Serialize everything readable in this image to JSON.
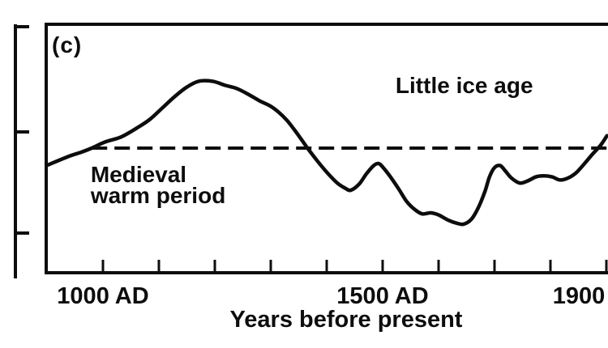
{
  "figure": {
    "background": "#ffffff",
    "ink_color": "#0d0d0d"
  },
  "chart_data": {
    "type": "line",
    "title": "",
    "panel_label": "(c)",
    "xlabel": "Years before present",
    "ylabel": "",
    "xlim": [
      899,
      1903
    ],
    "ylim": [
      -1.21,
      1.2
    ],
    "grid": false,
    "x_ticks": {
      "start_year": 1000,
      "end_year": 1900,
      "step": 100
    },
    "x_tick_labels": [
      {
        "year": 1000,
        "label": "1000 AD"
      },
      {
        "year": 1500,
        "label": "1500 AD"
      },
      {
        "year": 1900,
        "label": "1900"
      }
    ],
    "y_axis": {
      "labels_visible": false,
      "tick_count": 3
    },
    "baseline": {
      "value": 0,
      "style": "dashed",
      "start_year": 980,
      "end_year": 1903
    },
    "annotations": [
      {
        "id": "little-ice-age",
        "lines": [
          "Little ice age"
        ],
        "year": 1646,
        "value": 0.61,
        "align": "center"
      },
      {
        "id": "medieval-warm-period",
        "lines": [
          "Medieval",
          "warm period"
        ],
        "year": 978,
        "value": -0.17,
        "align": "left"
      }
    ],
    "series": [
      {
        "name": "relative-temperature",
        "x": [
          899,
          939,
          961,
          980,
          1004,
          1033,
          1062,
          1084,
          1106,
          1128,
          1149,
          1171,
          1196,
          1219,
          1239,
          1261,
          1280,
          1299,
          1314,
          1329,
          1342,
          1354,
          1367,
          1384,
          1401,
          1419,
          1433,
          1443,
          1458,
          1471,
          1484,
          1493,
          1501,
          1514,
          1529,
          1543,
          1558,
          1571,
          1586,
          1600,
          1617,
          1632,
          1645,
          1659,
          1671,
          1683,
          1691,
          1700,
          1710,
          1719,
          1730,
          1745,
          1759,
          1774,
          1788,
          1803,
          1817,
          1832,
          1846,
          1861,
          1875,
          1890,
          1901
        ],
        "y": [
          -0.17,
          -0.08,
          -0.04,
          0,
          0.06,
          0.11,
          0.2,
          0.28,
          0.39,
          0.5,
          0.59,
          0.65,
          0.65,
          0.61,
          0.58,
          0.52,
          0.46,
          0.41,
          0.35,
          0.27,
          0.18,
          0.09,
          -0.01,
          -0.13,
          -0.24,
          -0.34,
          -0.39,
          -0.41,
          -0.35,
          -0.25,
          -0.17,
          -0.15,
          -0.19,
          -0.28,
          -0.4,
          -0.52,
          -0.6,
          -0.64,
          -0.63,
          -0.65,
          -0.7,
          -0.73,
          -0.74,
          -0.69,
          -0.58,
          -0.42,
          -0.28,
          -0.19,
          -0.17,
          -0.22,
          -0.29,
          -0.34,
          -0.32,
          -0.28,
          -0.27,
          -0.28,
          -0.31,
          -0.29,
          -0.24,
          -0.15,
          -0.06,
          0.03,
          0.12
        ]
      }
    ]
  }
}
